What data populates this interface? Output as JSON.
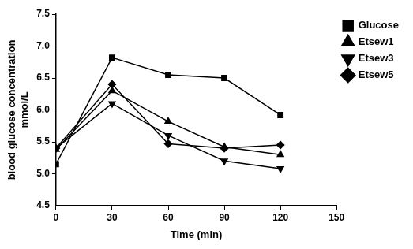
{
  "chart_data": {
    "type": "line",
    "x_label": "Time (min)",
    "y_label": [
      "blood glucose concentration",
      "mmol/L"
    ],
    "x": [
      0,
      30,
      60,
      90,
      120
    ],
    "series": [
      {
        "name": "Glucose",
        "color": "#000000",
        "marker": "square",
        "values": [
          5.15,
          6.82,
          6.55,
          6.5,
          5.92
        ]
      },
      {
        "name": "Etsew1",
        "color": "#000000",
        "marker": "triangle",
        "values": [
          5.38,
          6.3,
          5.82,
          5.42,
          5.3
        ]
      },
      {
        "name": "Etsew3",
        "color": "#000000",
        "marker": "triangle_down",
        "values": [
          5.4,
          6.1,
          5.6,
          5.2,
          5.08
        ]
      },
      {
        "name": "Etsew5",
        "color": "#000000",
        "marker": "diamond",
        "values": [
          5.4,
          6.4,
          5.47,
          5.4,
          5.45
        ]
      }
    ],
    "xlim": [
      0,
      150
    ],
    "xticks": [
      0,
      30,
      60,
      90,
      120,
      150
    ],
    "ylim": [
      4.5,
      7.5
    ],
    "yticks": [
      4.5,
      {
        "value": 5,
        "label": "5.0"
      },
      5.5,
      {
        "value": 6,
        "label": "6.0"
      },
      6.5,
      {
        "value": 7,
        "label": "7.0"
      },
      7.5
    ],
    "grid": false,
    "legend": "right"
  }
}
